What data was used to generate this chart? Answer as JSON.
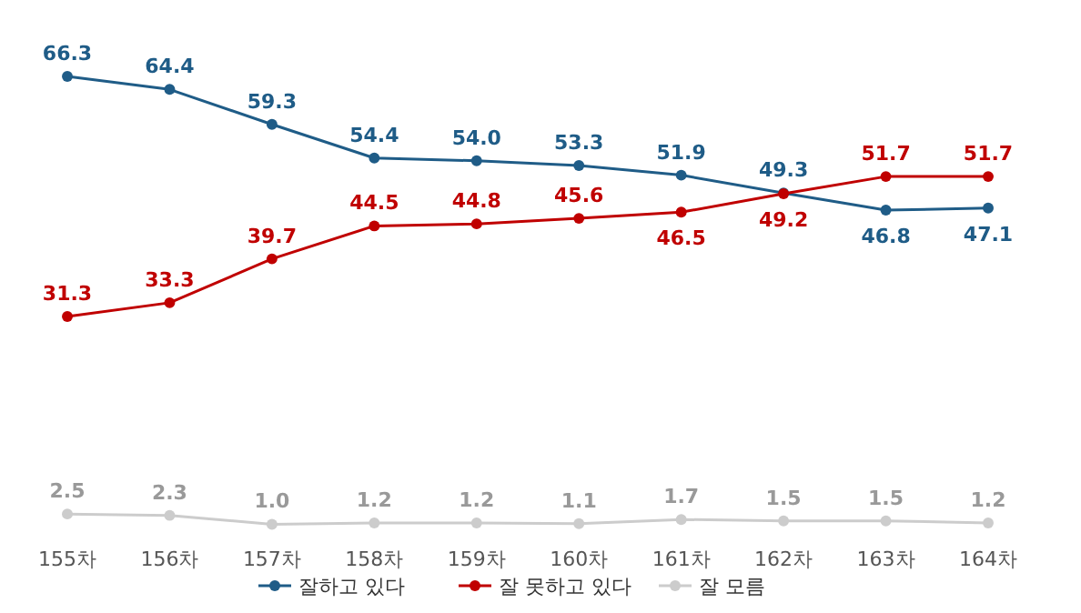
{
  "chart_data": {
    "type": "line",
    "categories": [
      "155차",
      "156차",
      "157차",
      "158차",
      "159차",
      "160차",
      "161차",
      "162차",
      "163차",
      "164차"
    ],
    "series": [
      {
        "name": "잘하고 있다",
        "color": "#1f5c87",
        "values": [
          66.3,
          64.4,
          59.3,
          54.4,
          54.0,
          53.3,
          51.9,
          49.3,
          46.8,
          47.1
        ],
        "value_labels": [
          "66.3",
          "64.4",
          "59.3",
          "54.4",
          "54.0",
          "53.3",
          "51.9",
          "49.3",
          "46.8",
          "47.1"
        ]
      },
      {
        "name": "잘 못하고 있다",
        "color": "#c00000",
        "values": [
          31.3,
          33.3,
          39.7,
          44.5,
          44.8,
          45.6,
          46.5,
          49.2,
          51.7,
          51.7
        ],
        "value_labels": [
          "31.3",
          "33.3",
          "39.7",
          "44.5",
          "44.8",
          "45.6",
          "46.5",
          "49.2",
          "51.7",
          "51.7"
        ]
      },
      {
        "name": "잘 모름",
        "color": "#cccccc",
        "values": [
          2.5,
          2.3,
          1.0,
          1.2,
          1.2,
          1.1,
          1.7,
          1.5,
          1.5,
          1.2
        ],
        "value_labels": [
          "2.5",
          "2.3",
          "1.0",
          "1.2",
          "1.2",
          "1.1",
          "1.7",
          "1.5",
          "1.5",
          "1.2"
        ]
      }
    ],
    "marker": "circle",
    "legend": "bottom",
    "grid": false
  }
}
